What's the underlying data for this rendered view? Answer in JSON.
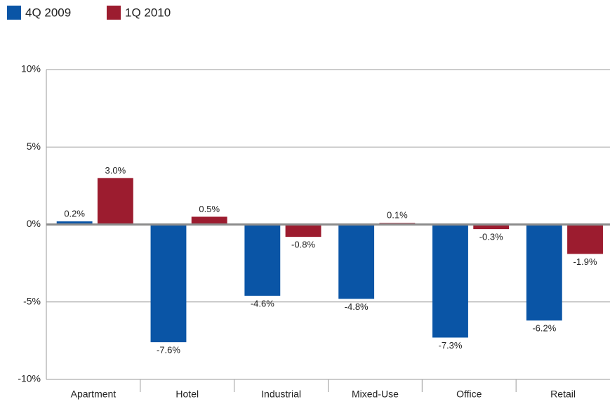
{
  "chart_data": {
    "type": "bar",
    "categories": [
      "Apartment",
      "Hotel",
      "Industrial",
      "Mixed-Use",
      "Office",
      "Retail"
    ],
    "series": [
      {
        "name": "4Q 2009",
        "color": "#0a55a6",
        "values": [
          0.2,
          -7.6,
          -4.6,
          -4.8,
          -7.3,
          -6.2
        ],
        "value_labels": [
          "0.2%",
          "-7.6%",
          "-4.6%",
          "-4.8%",
          "-7.3%",
          "-6.2%"
        ]
      },
      {
        "name": "1Q 2010",
        "color": "#9c1c2f",
        "values": [
          3.0,
          0.5,
          -0.8,
          0.1,
          -0.3,
          -1.9
        ],
        "value_labels": [
          "3.0%",
          "0.5%",
          "-0.8%",
          "0.1%",
          "-0.3%",
          "-1.9%"
        ]
      }
    ],
    "ylim": [
      -10,
      10
    ],
    "yticks": [
      {
        "value": -10,
        "label": "-10%"
      },
      {
        "value": -5,
        "label": "-5%"
      },
      {
        "value": 0,
        "label": "0%"
      },
      {
        "value": 5,
        "label": "5%"
      },
      {
        "value": 10,
        "label": "10%"
      }
    ],
    "grid": true
  }
}
